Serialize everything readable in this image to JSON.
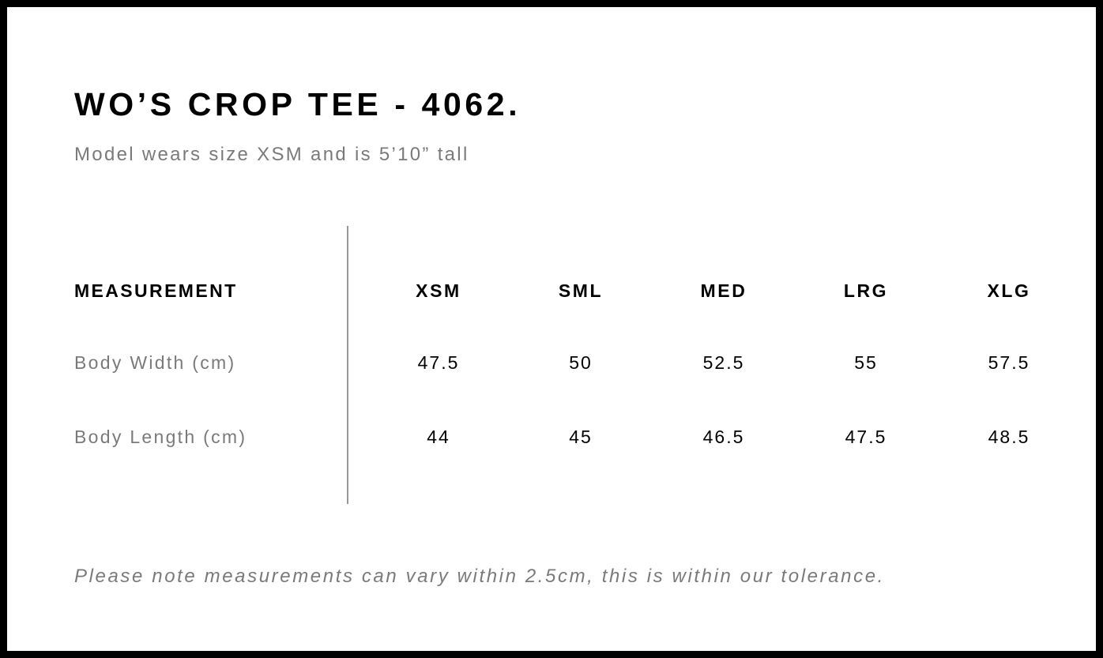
{
  "title": "WO’S CROP TEE - 4062.",
  "subtitle": "Model wears size XSM and is 5’10” tall",
  "table": {
    "header_label": "MEASUREMENT",
    "sizes": [
      "XSM",
      "SML",
      "MED",
      "LRG",
      "XLG"
    ],
    "rows": [
      {
        "label": "Body Width (cm)",
        "values": [
          "47.5",
          "50",
          "52.5",
          "55",
          "57.5"
        ]
      },
      {
        "label": "Body Length (cm)",
        "values": [
          "44",
          "45",
          "46.5",
          "47.5",
          "48.5"
        ]
      }
    ]
  },
  "note": "Please note measurements can vary within 2.5cm, this is within our tolerance."
}
